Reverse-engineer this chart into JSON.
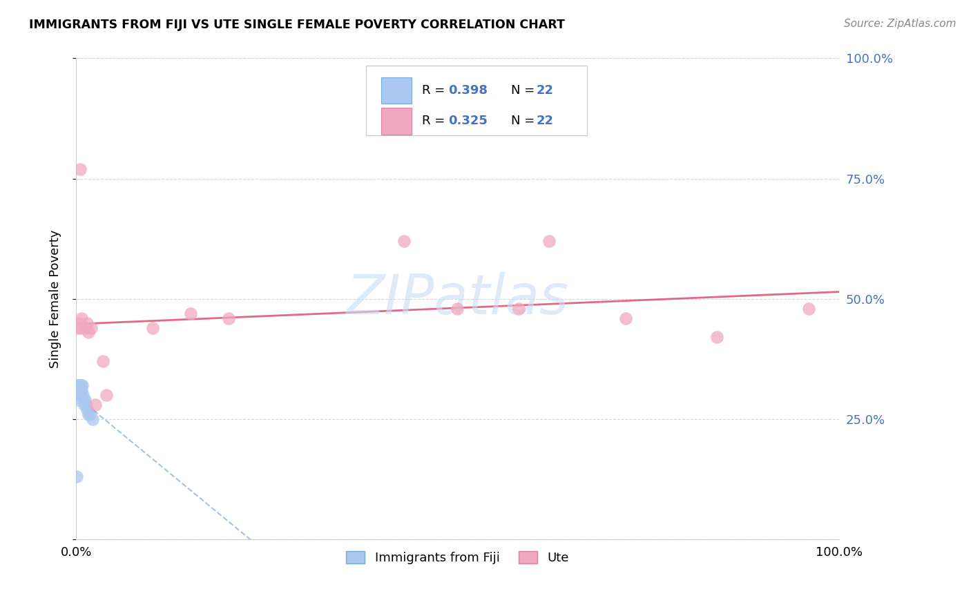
{
  "title": "IMMIGRANTS FROM FIJI VS UTE SINGLE FEMALE POVERTY CORRELATION CHART",
  "source": "Source: ZipAtlas.com",
  "ylabel": "Single Female Poverty",
  "legend_fiji_r": "0.398",
  "legend_fiji_n": "22",
  "legend_ute_r": "0.325",
  "legend_ute_n": "22",
  "legend_label_fiji": "Immigrants from Fiji",
  "legend_label_ute": "Ute",
  "fiji_color": "#aac8f0",
  "fiji_edge_color": "#7aaad8",
  "ute_color": "#f0a8c0",
  "ute_edge_color": "#e080a0",
  "fiji_line_color": "#4472c4",
  "fiji_dash_color": "#90b8e8",
  "ute_line_color": "#e05878",
  "watermark_color": "#c8ddf5",
  "right_tick_color": "#4472c4",
  "background_color": "#ffffff",
  "fiji_x": [
    0.001,
    0.002,
    0.002,
    0.003,
    0.003,
    0.004,
    0.004,
    0.005,
    0.005,
    0.006,
    0.007,
    0.007,
    0.008,
    0.009,
    0.01,
    0.011,
    0.012,
    0.013,
    0.014,
    0.016,
    0.018,
    0.022
  ],
  "fiji_y": [
    0.13,
    0.3,
    0.32,
    0.29,
    0.32,
    0.3,
    0.32,
    0.3,
    0.31,
    0.32,
    0.31,
    0.3,
    0.32,
    0.3,
    0.29,
    0.28,
    0.29,
    0.28,
    0.27,
    0.26,
    0.26,
    0.25
  ],
  "ute_x": [
    0.002,
    0.004,
    0.005,
    0.006,
    0.007,
    0.012,
    0.014,
    0.016,
    0.02,
    0.025,
    0.035,
    0.04,
    0.1,
    0.15,
    0.2,
    0.43,
    0.5,
    0.58,
    0.62,
    0.72,
    0.84,
    0.96
  ],
  "ute_y": [
    0.44,
    0.45,
    0.77,
    0.44,
    0.46,
    0.44,
    0.45,
    0.43,
    0.44,
    0.28,
    0.37,
    0.3,
    0.44,
    0.47,
    0.46,
    0.62,
    0.48,
    0.48,
    0.62,
    0.46,
    0.42,
    0.48
  ],
  "xlim": [
    0.0,
    1.0
  ],
  "ylim": [
    0.0,
    1.0
  ]
}
